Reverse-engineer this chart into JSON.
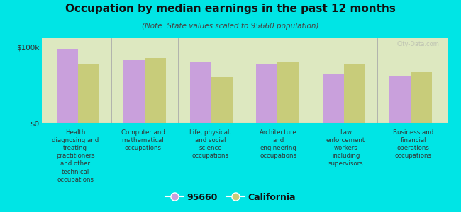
{
  "title": "Occupation by median earnings in the past 12 months",
  "subtitle": "(Note: State values scaled to 95660 population)",
  "background_color": "#00e5e5",
  "plot_bg_color": "#dde8c0",
  "categories": [
    "Health\ndiagnosing and\ntreating\npractitioners\nand other\ntechnical\noccupations",
    "Computer and\nmathematical\noccupations",
    "Life, physical,\nand social\nscience\noccupations",
    "Architecture\nand\nengineering\noccupations",
    "Law\nenforcement\nworkers\nincluding\nsupervisors",
    "Business and\nfinancial\noperations\noccupations"
  ],
  "values_95660": [
    97000,
    83000,
    80000,
    78000,
    64000,
    62000
  ],
  "values_california": [
    77000,
    86000,
    61000,
    80000,
    77000,
    67000
  ],
  "color_95660": "#c9a0dc",
  "color_california": "#c8cc7a",
  "ylim": [
    0,
    112000
  ],
  "yticks": [
    0,
    100000
  ],
  "yticklabels": [
    "$0",
    "$100k"
  ],
  "legend_labels": [
    "95660",
    "California"
  ],
  "watermark": "City-Data.com"
}
